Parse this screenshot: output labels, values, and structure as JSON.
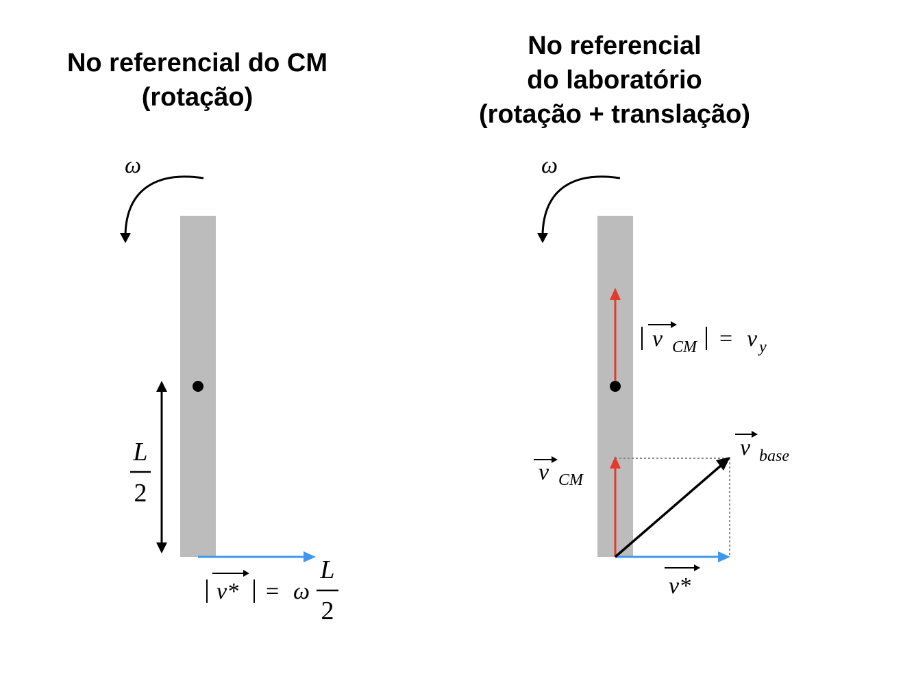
{
  "left_panel": {
    "title_lines": [
      "No referencial do CM",
      "(rotação)"
    ],
    "omega_label": "ω",
    "length_fraction": {
      "numerator": "L",
      "denominator": "2"
    },
    "velocity_formula": {
      "vector_symbol": "v*",
      "equals": "=",
      "omega": "ω",
      "fraction": {
        "numerator": "L",
        "denominator": "2"
      }
    }
  },
  "right_panel": {
    "title_lines": [
      "No referencial",
      "do laboratório",
      "(rotação + translação)"
    ],
    "omega_label": "ω",
    "vcm_formula": {
      "vector_symbol": "v",
      "subscript": "CM",
      "equals": "=",
      "rhs_symbol": "v",
      "rhs_subscript": "y"
    },
    "vcm_label": {
      "vector_symbol": "v",
      "subscript": "CM"
    },
    "vbase_label": {
      "vector_symbol": "v",
      "subscript": "base"
    },
    "vstar_label": {
      "vector_symbol": "v*"
    }
  },
  "colors": {
    "bar": "#bcbcbc",
    "blue_arrow": "#3f97ee",
    "red_arrow": "#e23a2b",
    "black": "#000000",
    "dotted_guide": "#8a8a8a"
  }
}
